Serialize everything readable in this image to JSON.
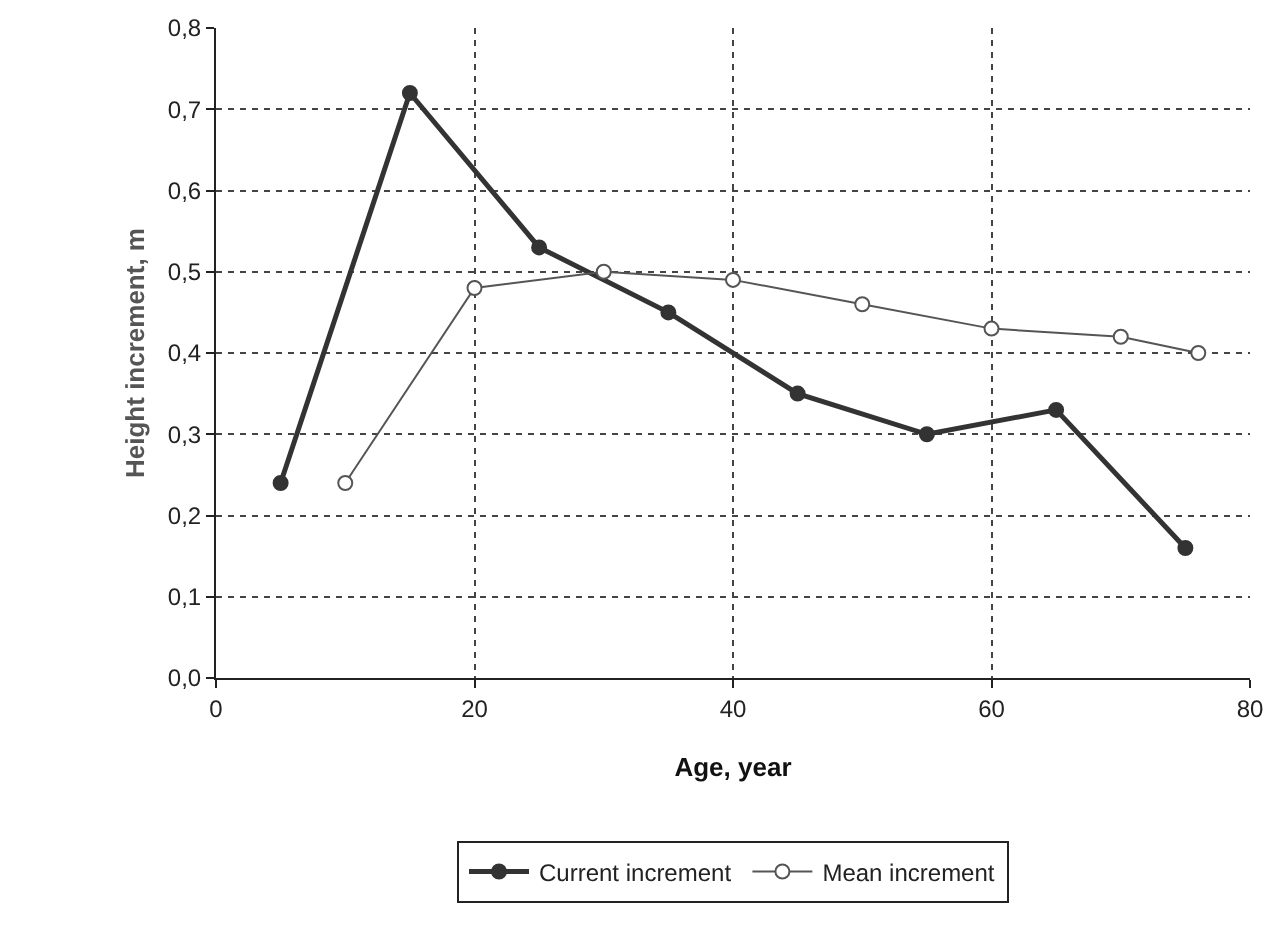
{
  "chart_data": {
    "type": "line",
    "xlabel": "Age, year",
    "ylabel": "Height increment, m",
    "series": [
      {
        "name": "Current increment",
        "color": "#333333",
        "x": [
          5,
          15,
          25,
          35,
          45,
          55,
          65,
          75
        ],
        "values": [
          0.24,
          0.72,
          0.53,
          0.45,
          0.35,
          0.3,
          0.33,
          0.16
        ]
      },
      {
        "name": "Mean increment",
        "color": "#555555",
        "x": [
          10,
          20,
          30,
          40,
          50,
          60,
          70,
          76
        ],
        "values": [
          0.24,
          0.48,
          0.5,
          0.49,
          0.46,
          0.43,
          0.42,
          0.4
        ]
      }
    ],
    "xlim": [
      0,
      80
    ],
    "xticks": [
      0,
      20,
      40,
      60,
      80
    ],
    "ylim": [
      0,
      0.8
    ],
    "yticks": [
      {
        "value": 0,
        "label": "0,0"
      },
      {
        "value": 0.1,
        "label": "0,1"
      },
      {
        "value": 0.2,
        "label": "0,2"
      },
      {
        "value": 0.3,
        "label": "0,3"
      },
      {
        "value": 0.4,
        "label": "0,4"
      },
      {
        "value": 0.5,
        "label": "0,5"
      },
      {
        "value": 0.6,
        "label": "0,6"
      },
      {
        "value": 0.7,
        "label": "0,7"
      },
      {
        "value": 0.8,
        "label": "0,8"
      }
    ],
    "grid": true,
    "legend": "bottom",
    "marker": "circle",
    "line_style": "solid"
  }
}
